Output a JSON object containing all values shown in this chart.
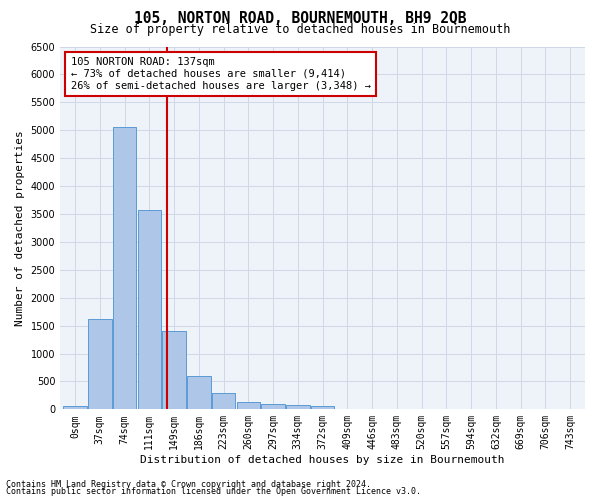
{
  "title": "105, NORTON ROAD, BOURNEMOUTH, BH9 2QB",
  "subtitle": "Size of property relative to detached houses in Bournemouth",
  "xlabel": "Distribution of detached houses by size in Bournemouth",
  "ylabel": "Number of detached properties",
  "footer_line1": "Contains HM Land Registry data © Crown copyright and database right 2024.",
  "footer_line2": "Contains public sector information licensed under the Open Government Licence v3.0.",
  "bin_labels": [
    "0sqm",
    "37sqm",
    "74sqm",
    "111sqm",
    "149sqm",
    "186sqm",
    "223sqm",
    "260sqm",
    "297sqm",
    "334sqm",
    "372sqm",
    "409sqm",
    "446sqm",
    "483sqm",
    "520sqm",
    "557sqm",
    "594sqm",
    "632sqm",
    "669sqm",
    "706sqm",
    "743sqm"
  ],
  "bar_values": [
    65,
    1620,
    5060,
    3570,
    1400,
    590,
    290,
    135,
    100,
    75,
    55,
    0,
    0,
    0,
    0,
    0,
    0,
    0,
    0,
    0,
    0
  ],
  "bar_color": "#aec6e8",
  "bar_edgecolor": "#5b9bd5",
  "grid_color": "#d0d8e8",
  "vline_color": "#cc0000",
  "annotation_text_line1": "105 NORTON ROAD: 137sqm",
  "annotation_text_line2": "← 73% of detached houses are smaller (9,414)",
  "annotation_text_line3": "26% of semi-detached houses are larger (3,348) →",
  "annotation_box_edgecolor": "#cc0000",
  "ylim": [
    0,
    6500
  ],
  "yticks": [
    0,
    500,
    1000,
    1500,
    2000,
    2500,
    3000,
    3500,
    4000,
    4500,
    5000,
    5500,
    6000,
    6500
  ],
  "title_fontsize": 10.5,
  "subtitle_fontsize": 8.5,
  "axis_label_fontsize": 8,
  "tick_fontsize": 7,
  "annotation_fontsize": 7.5,
  "footer_fontsize": 6.0
}
